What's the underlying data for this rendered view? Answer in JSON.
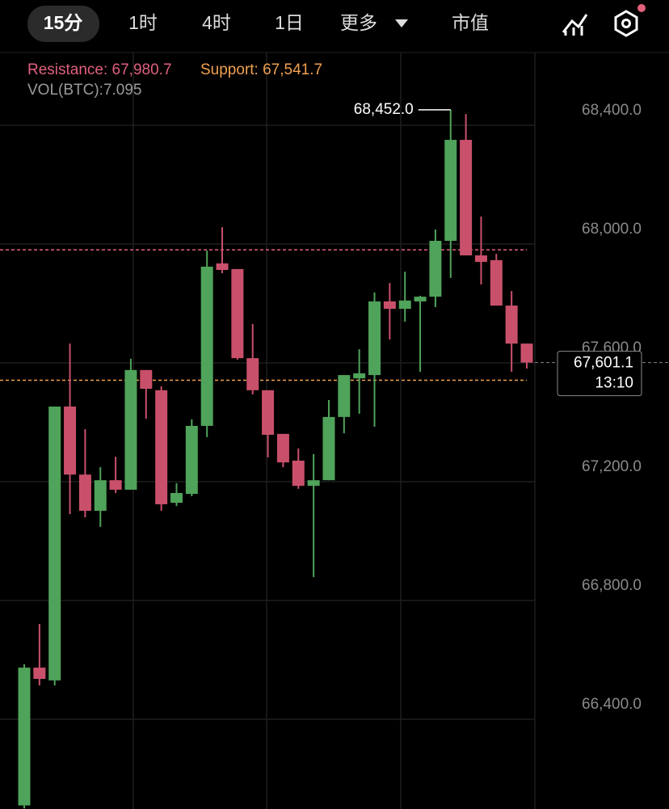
{
  "tabs": [
    "15分",
    "1时",
    "4时",
    "1日",
    "更多",
    "市值"
  ],
  "chart_data": {
    "type": "candlestick",
    "resistance_label": "Resistance: 67,980.7",
    "resistance": 67980.7,
    "resistance_color": "#e0607e",
    "support_label": "Support: 67,541.7",
    "support": 67541.7,
    "support_color": "#f0a050",
    "volume_label": "VOL(BTC):7.095",
    "max_label": {
      "value": 68452,
      "label": "68,452.0"
    },
    "last_price": {
      "value": 67601.1,
      "label": "67,601.1"
    },
    "countdown": "13:10",
    "up_color": "#4fa35a",
    "down_color": "#c9506b",
    "ylim": [
      66098,
      68645
    ],
    "yticks": [
      {
        "value": 66400,
        "label": "66,400.0"
      },
      {
        "value": 66800,
        "label": "66,800.0"
      },
      {
        "value": 67200,
        "label": "67,200.0"
      },
      {
        "value": 67600,
        "label": "67,600.0"
      },
      {
        "value": 68000,
        "label": "68,000.0"
      },
      {
        "value": 68400,
        "label": "68,400.0"
      }
    ],
    "grid": true,
    "open": [
      66110,
      66574,
      66531,
      67453,
      67224,
      67102,
      67205,
      67173,
      67576,
      67508,
      67129,
      67159,
      67388,
      67935,
      67916,
      67616,
      67508,
      67361,
      67271,
      67186,
      67205,
      67418,
      67548,
      67559,
      67807,
      67782,
      67807,
      67823,
      68011,
      68351,
      67962,
      67946,
      67793,
      67665
    ],
    "high": [
      66585,
      66721,
      67453,
      67665,
      67377,
      67249,
      67284,
      67614,
      67576,
      67521,
      67195,
      67410,
      67978,
      68057,
      67916,
      67731,
      67508,
      67361,
      67312,
      67293,
      67475,
      67559,
      67646,
      67837,
      67869,
      67907,
      67826,
      68049,
      68452,
      68438,
      68093,
      67967,
      67842,
      67665
    ],
    "low": [
      66100,
      66514,
      66514,
      67091,
      67080,
      67048,
      67162,
      67173,
      67412,
      67102,
      67118,
      67151,
      67350,
      67902,
      67611,
      67494,
      67282,
      67249,
      67176,
      66879,
      67205,
      67363,
      67429,
      67385,
      67679,
      67739,
      67570,
      67788,
      67886,
      67962,
      67864,
      67793,
      67570,
      67581
    ],
    "close": [
      66574,
      66536,
      67453,
      67224,
      67102,
      67205,
      67173,
      67576,
      67513,
      67124,
      67162,
      67388,
      67924,
      67913,
      67616,
      67508,
      67358,
      67265,
      67186,
      67205,
      67418,
      67559,
      67565,
      67807,
      67782,
      67810,
      67823,
      68011,
      68351,
      67962,
      67940,
      67793,
      67665,
      67601.1
    ]
  }
}
